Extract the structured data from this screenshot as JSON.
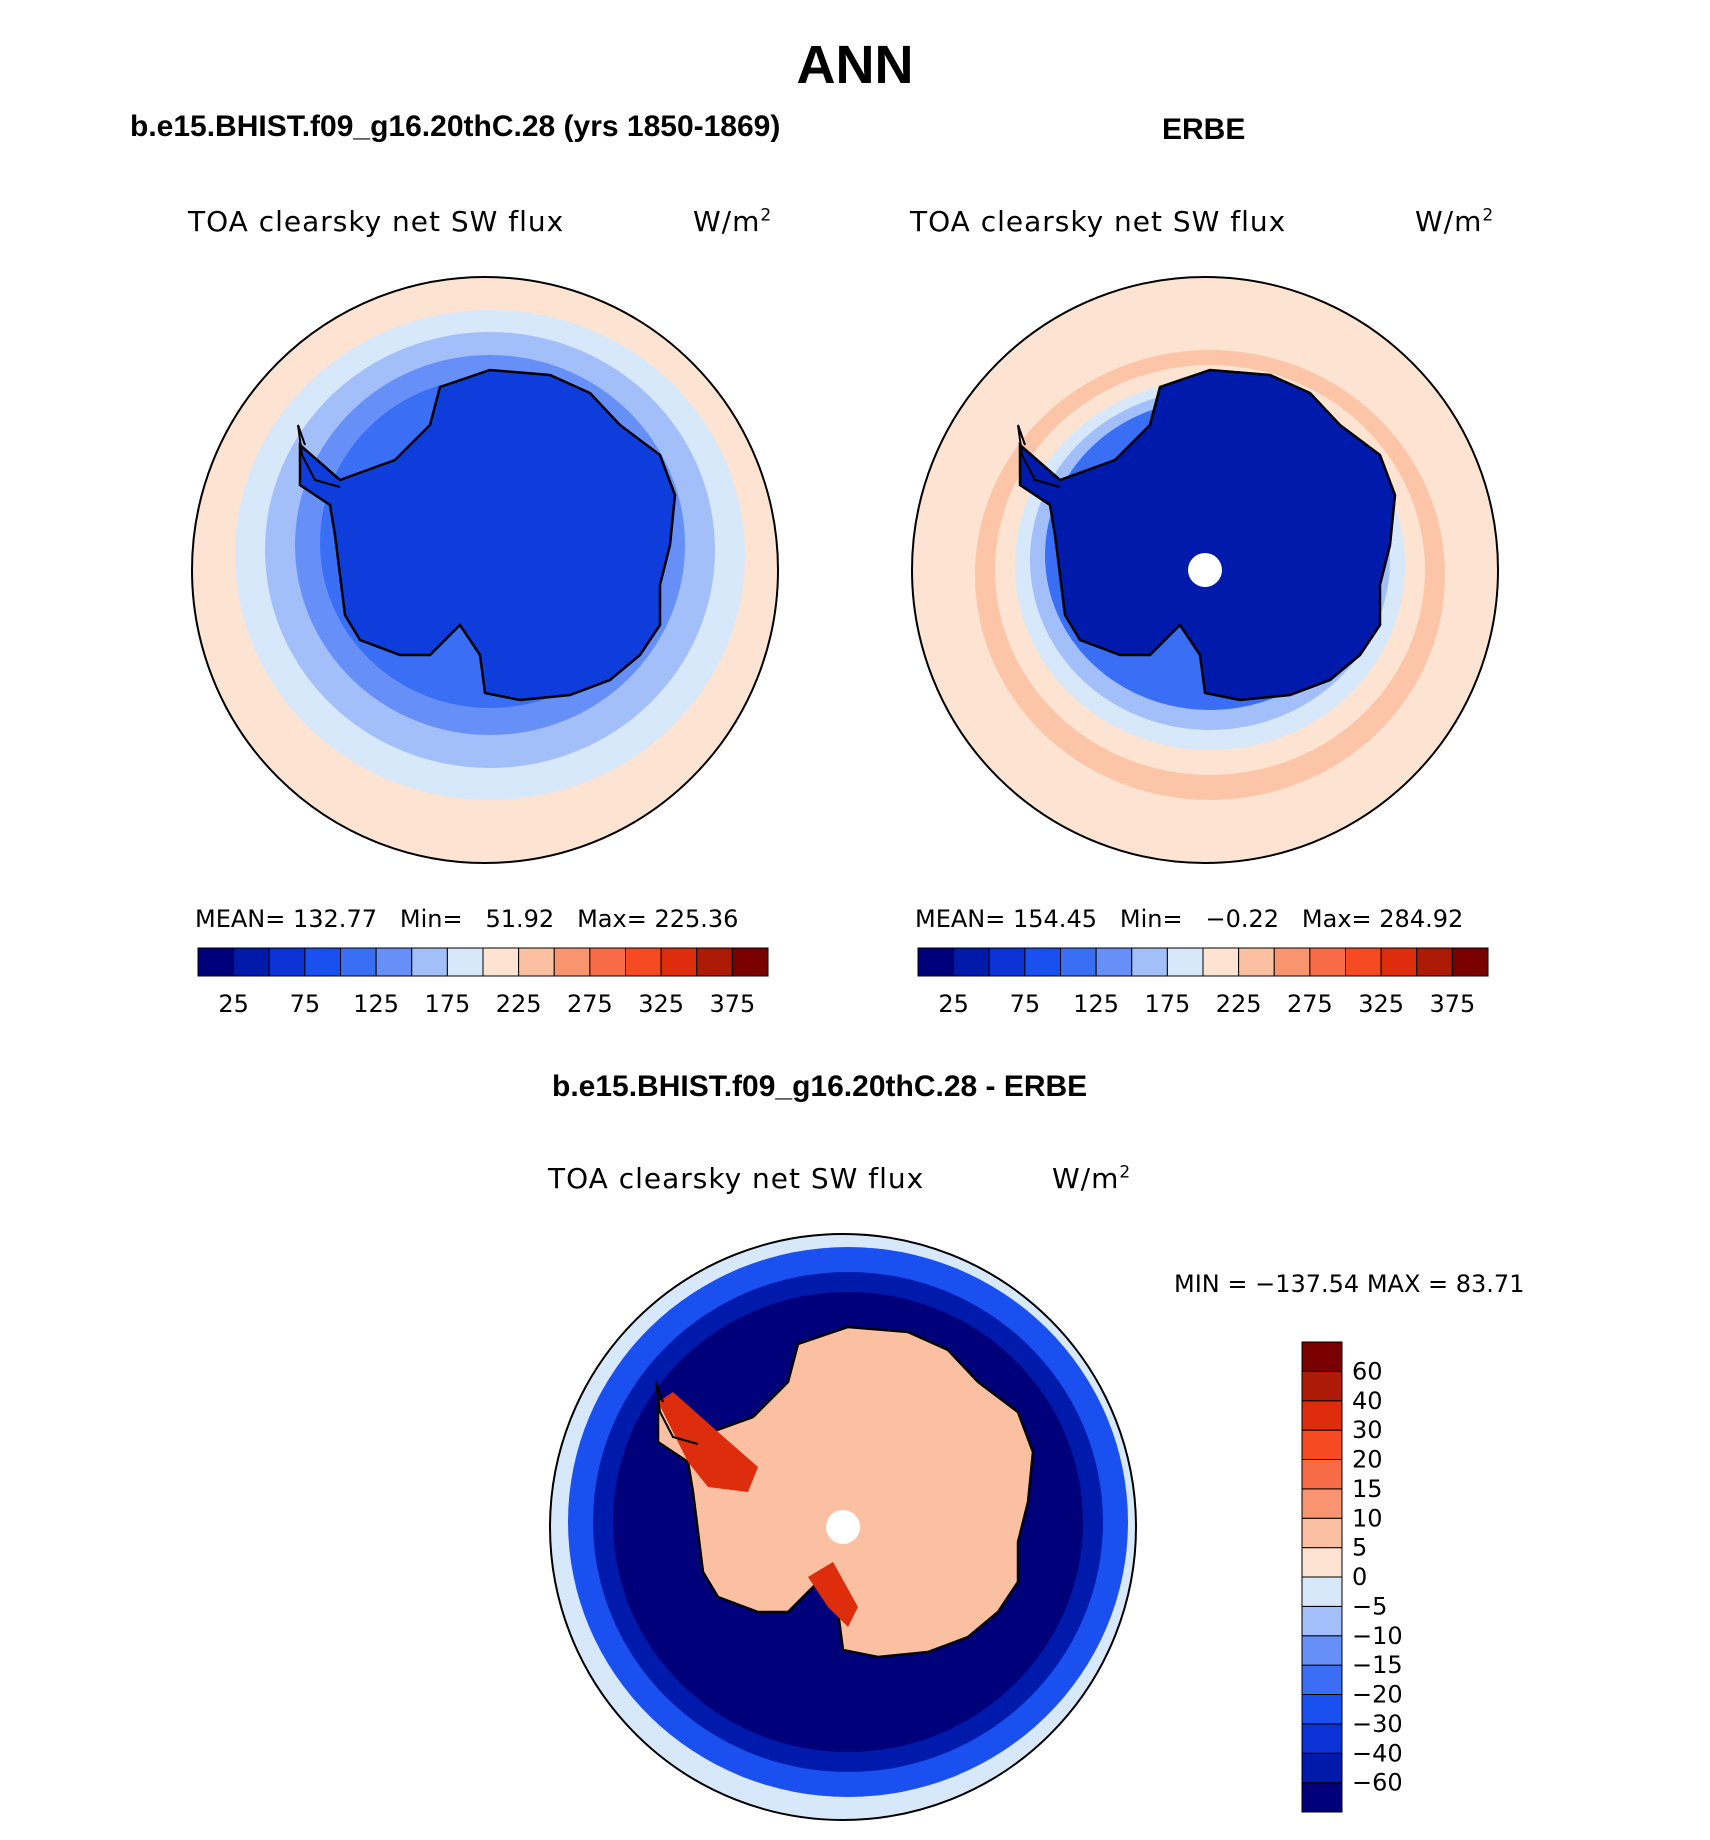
{
  "header": {
    "title": "ANN"
  },
  "panels": [
    {
      "id": "model",
      "title": "b.e15.BHIST.f09_g16.20thC.28 (yrs 1850-1869)",
      "variable": "TOA clearsky net SW flux",
      "units_base": "W/m",
      "units_exp": "2",
      "mean_label": "MEAN=",
      "mean": "132.77",
      "min_label": "Min=",
      "min": "51.92",
      "max_label": "Max=",
      "max": "225.36"
    },
    {
      "id": "obs",
      "title": "ERBE",
      "variable": "TOA clearsky net SW flux",
      "units_base": "W/m",
      "units_exp": "2",
      "mean_label": "MEAN=",
      "mean": "154.45",
      "min_label": "Min=",
      "min": "−0.22",
      "max_label": "Max=",
      "max": "284.92"
    },
    {
      "id": "diff",
      "title": "b.e15.BHIST.f09_g16.20thC.28 - ERBE",
      "variable": "TOA clearsky net SW flux",
      "units_base": "W/m",
      "units_exp": "2",
      "minmax_text": "MIN = −137.54 MAX =   83.71"
    }
  ],
  "chart_data": [
    {
      "type": "heatmap",
      "projection": "south-polar-stereographic",
      "panel": "model",
      "title": "b.e15.BHIST.f09_g16.20thC.28 (yrs 1850-1869)",
      "levels": [
        25,
        50,
        75,
        100,
        125,
        150,
        175,
        200,
        225,
        250,
        275,
        300,
        325,
        350,
        375
      ],
      "colorbar_labels": [
        "25",
        "75",
        "125",
        "175",
        "225",
        "275",
        "325",
        "375"
      ],
      "stats": {
        "mean": 132.77,
        "min": 51.92,
        "max": 225.36
      }
    },
    {
      "type": "heatmap",
      "projection": "south-polar-stereographic",
      "panel": "obs",
      "title": "ERBE",
      "levels": [
        25,
        50,
        75,
        100,
        125,
        150,
        175,
        200,
        225,
        250,
        275,
        300,
        325,
        350,
        375
      ],
      "colorbar_labels": [
        "25",
        "75",
        "125",
        "175",
        "225",
        "275",
        "325",
        "375"
      ],
      "stats": {
        "mean": 154.45,
        "min": -0.22,
        "max": 284.92
      }
    },
    {
      "type": "heatmap",
      "projection": "south-polar-stereographic",
      "panel": "diff",
      "title": "b.e15.BHIST.f09_g16.20thC.28 - ERBE",
      "levels": [
        -60,
        -40,
        -30,
        -20,
        -15,
        -10,
        -5,
        0,
        5,
        10,
        15,
        20,
        30,
        40,
        60
      ],
      "colorbar_labels": [
        "60",
        "40",
        "30",
        "20",
        "15",
        "10",
        "5",
        "0",
        "−5",
        "−10",
        "−15",
        "−20",
        "−30",
        "−40",
        "−60"
      ],
      "stats": {
        "min": -137.54,
        "max": 83.71
      }
    }
  ],
  "colors": {
    "palette16": [
      "#00007a",
      "#001aab",
      "#0a32d6",
      "#1a4ff0",
      "#3a6ff5",
      "#6690f7",
      "#a3bff9",
      "#d8e8fb",
      "#fce3d2",
      "#fbbfa1",
      "#f99470",
      "#f76c47",
      "#f54a22",
      "#dd2d0c",
      "#ad1a06",
      "#7a0000"
    ],
    "ocean_light": "#fce3d2",
    "land_deep": "#0f3ddb",
    "coast": "#000000"
  }
}
